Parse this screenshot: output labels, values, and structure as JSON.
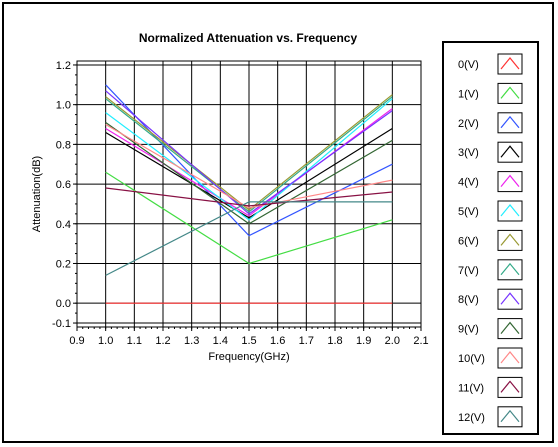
{
  "chart_data": {
    "type": "line",
    "title": "Normalized Attenuation vs. Frequency",
    "xlabel": "Frequency(GHz)",
    "ylabel": "Attenuation(dB)",
    "xlim": [
      0.9,
      2.1
    ],
    "ylim": [
      -0.12,
      1.22
    ],
    "x_ticks": [
      "0.9",
      "1.0",
      "1.1",
      "1.2",
      "1.3",
      "1.4",
      "1.5",
      "1.6",
      "1.7",
      "1.8",
      "1.9",
      "2.0",
      "2.1"
    ],
    "y_ticks": [
      "-0.1",
      "0.0",
      "0.2",
      "0.4",
      "0.6",
      "0.8",
      "1.0",
      "1.2"
    ],
    "grid": true,
    "legend_position": "right",
    "x": [
      1.0,
      1.5,
      2.0
    ],
    "series": [
      {
        "name": "0(V)",
        "color": "#ff3333",
        "values": [
          0.0,
          0.0,
          0.0
        ]
      },
      {
        "name": "1(V)",
        "color": "#44dd44",
        "values": [
          0.66,
          0.2,
          0.42
        ]
      },
      {
        "name": "2(V)",
        "color": "#3355ff",
        "values": [
          1.1,
          0.34,
          0.7
        ]
      },
      {
        "name": "3(V)",
        "color": "#000000",
        "values": [
          0.86,
          0.43,
          0.88
        ]
      },
      {
        "name": "4(V)",
        "color": "#ee22ee",
        "values": [
          0.88,
          0.44,
          0.98
        ]
      },
      {
        "name": "5(V)",
        "color": "#22eeff",
        "values": [
          0.96,
          0.42,
          1.03
        ]
      },
      {
        "name": "6(V)",
        "color": "#999933",
        "values": [
          1.04,
          0.47,
          1.05
        ]
      },
      {
        "name": "7(V)",
        "color": "#33aa88",
        "values": [
          1.03,
          0.46,
          1.04
        ]
      },
      {
        "name": "8(V)",
        "color": "#7733ff",
        "values": [
          1.07,
          0.45,
          0.97
        ]
      },
      {
        "name": "9(V)",
        "color": "#336633",
        "values": [
          0.91,
          0.4,
          0.82
        ]
      },
      {
        "name": "10(V)",
        "color": "#ff8888",
        "values": [
          0.9,
          0.48,
          0.62
        ]
      },
      {
        "name": "11(V)",
        "color": "#881144",
        "values": [
          0.58,
          0.49,
          0.56
        ]
      },
      {
        "name": "12(V)",
        "color": "#448888",
        "values": [
          0.14,
          0.51,
          0.51
        ]
      }
    ]
  }
}
